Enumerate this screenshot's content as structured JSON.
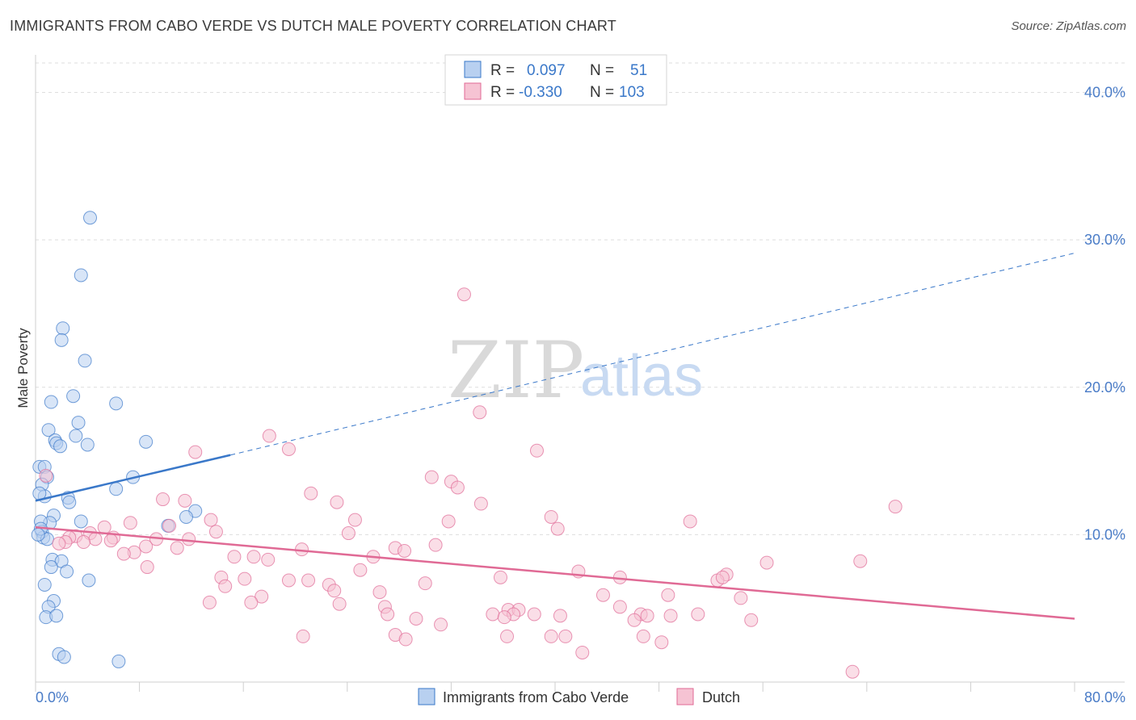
{
  "title": "IMMIGRANTS FROM CABO VERDE VS DUTCH MALE POVERTY CORRELATION CHART",
  "source": "Source: ZipAtlas.com",
  "watermark": {
    "zip": "ZIP",
    "atlas": "atlas"
  },
  "colors": {
    "blue": "#3a78c9",
    "blue_fill": "#b8d0f0",
    "pink": "#e06a95",
    "pink_fill": "#f6c3d3"
  },
  "legend": {
    "rows": [
      {
        "r_label": "R =",
        "r_value": "0.097",
        "n_label": "N =",
        "n_value": "51"
      },
      {
        "r_label": "R =",
        "r_value": "-0.330",
        "n_label": "N =",
        "n_value": "103"
      }
    ]
  },
  "chart_data": {
    "type": "scatter",
    "title": "IMMIGRANTS FROM CABO VERDE VS DUTCH MALE POVERTY CORRELATION CHART",
    "xlabel": "",
    "ylabel": "Male Poverty",
    "xlim": [
      0,
      80
    ],
    "ylim": [
      0,
      42
    ],
    "x_tick_labels": [
      "0.0%",
      "80.0%"
    ],
    "y_ticks": [
      10,
      20,
      30,
      40
    ],
    "y_tick_labels": [
      "10.0%",
      "20.0%",
      "30.0%",
      "40.0%"
    ],
    "series": [
      {
        "name": "Immigrants from Cabo Verde",
        "color": "#3a78c9",
        "trend": {
          "x0": 0,
          "y0": 12.3,
          "x1": 15,
          "y1": 15.4,
          "dash_to_x": 80,
          "dash_to_y": 29.1
        },
        "points": [
          [
            4.2,
            31.5
          ],
          [
            3.5,
            27.6
          ],
          [
            2.1,
            24.0
          ],
          [
            2.0,
            23.2
          ],
          [
            3.8,
            21.8
          ],
          [
            2.9,
            19.4
          ],
          [
            1.2,
            19.0
          ],
          [
            6.2,
            18.9
          ],
          [
            3.3,
            17.6
          ],
          [
            1.0,
            17.1
          ],
          [
            3.1,
            16.7
          ],
          [
            1.5,
            16.4
          ],
          [
            1.6,
            16.2
          ],
          [
            1.9,
            16.0
          ],
          [
            4.0,
            16.1
          ],
          [
            8.5,
            16.3
          ],
          [
            0.3,
            14.6
          ],
          [
            0.7,
            14.6
          ],
          [
            0.9,
            13.9
          ],
          [
            7.5,
            13.9
          ],
          [
            0.5,
            13.4
          ],
          [
            6.2,
            13.1
          ],
          [
            0.7,
            12.6
          ],
          [
            2.5,
            12.5
          ],
          [
            2.6,
            12.2
          ],
          [
            12.3,
            11.6
          ],
          [
            11.6,
            11.2
          ],
          [
            1.4,
            11.3
          ],
          [
            1.1,
            10.8
          ],
          [
            3.5,
            10.9
          ],
          [
            0.4,
            10.9
          ],
          [
            10.2,
            10.6
          ],
          [
            0.5,
            10.2
          ],
          [
            0.6,
            9.8
          ],
          [
            0.9,
            9.7
          ],
          [
            1.3,
            8.3
          ],
          [
            2.0,
            8.2
          ],
          [
            1.2,
            7.8
          ],
          [
            2.4,
            7.5
          ],
          [
            4.1,
            6.9
          ],
          [
            0.7,
            6.6
          ],
          [
            1.4,
            5.5
          ],
          [
            1.0,
            5.1
          ],
          [
            0.8,
            4.4
          ],
          [
            1.6,
            4.5
          ],
          [
            1.8,
            1.9
          ],
          [
            2.2,
            1.7
          ],
          [
            6.4,
            1.4
          ],
          [
            0.4,
            10.4
          ],
          [
            0.3,
            12.8
          ],
          [
            0.2,
            10.0
          ]
        ]
      },
      {
        "name": "Dutch",
        "color": "#e06a95",
        "trend": {
          "x0": 0,
          "y0": 10.5,
          "x1": 80,
          "y1": 4.3
        },
        "points": [
          [
            33.0,
            26.3
          ],
          [
            34.2,
            18.3
          ],
          [
            18.0,
            16.7
          ],
          [
            19.5,
            15.8
          ],
          [
            12.3,
            15.6
          ],
          [
            38.6,
            15.7
          ],
          [
            0.8,
            14.0
          ],
          [
            30.5,
            13.9
          ],
          [
            32.0,
            13.6
          ],
          [
            32.5,
            13.2
          ],
          [
            21.2,
            12.8
          ],
          [
            9.8,
            12.4
          ],
          [
            11.5,
            12.3
          ],
          [
            23.2,
            12.2
          ],
          [
            34.3,
            12.1
          ],
          [
            66.2,
            11.9
          ],
          [
            39.7,
            11.2
          ],
          [
            24.6,
            11.0
          ],
          [
            31.8,
            10.9
          ],
          [
            50.4,
            10.9
          ],
          [
            13.5,
            11.0
          ],
          [
            7.3,
            10.8
          ],
          [
            10.3,
            10.6
          ],
          [
            5.3,
            10.5
          ],
          [
            40.2,
            10.4
          ],
          [
            13.9,
            10.2
          ],
          [
            24.1,
            10.1
          ],
          [
            4.2,
            10.1
          ],
          [
            3.1,
            9.9
          ],
          [
            2.6,
            9.8
          ],
          [
            6.0,
            9.8
          ],
          [
            11.8,
            9.7
          ],
          [
            9.3,
            9.7
          ],
          [
            4.6,
            9.7
          ],
          [
            5.8,
            9.6
          ],
          [
            2.3,
            9.5
          ],
          [
            3.7,
            9.5
          ],
          [
            1.8,
            9.4
          ],
          [
            8.5,
            9.2
          ],
          [
            10.9,
            9.1
          ],
          [
            27.7,
            9.1
          ],
          [
            30.8,
            9.3
          ],
          [
            28.4,
            8.9
          ],
          [
            20.5,
            9.0
          ],
          [
            7.6,
            8.8
          ],
          [
            6.8,
            8.7
          ],
          [
            26.0,
            8.5
          ],
          [
            15.3,
            8.5
          ],
          [
            16.8,
            8.5
          ],
          [
            17.9,
            8.3
          ],
          [
            56.3,
            8.1
          ],
          [
            63.5,
            8.2
          ],
          [
            8.6,
            7.8
          ],
          [
            25.0,
            7.6
          ],
          [
            41.8,
            7.5
          ],
          [
            53.2,
            7.3
          ],
          [
            14.3,
            7.1
          ],
          [
            16.1,
            7.0
          ],
          [
            35.8,
            7.1
          ],
          [
            45.0,
            7.1
          ],
          [
            52.5,
            6.9
          ],
          [
            52.9,
            7.1
          ],
          [
            19.5,
            6.9
          ],
          [
            21.0,
            6.9
          ],
          [
            30.0,
            6.7
          ],
          [
            22.6,
            6.6
          ],
          [
            14.6,
            6.5
          ],
          [
            23.0,
            6.2
          ],
          [
            26.5,
            6.1
          ],
          [
            43.7,
            5.9
          ],
          [
            48.7,
            5.9
          ],
          [
            17.4,
            5.8
          ],
          [
            54.3,
            5.7
          ],
          [
            16.6,
            5.4
          ],
          [
            13.4,
            5.4
          ],
          [
            23.4,
            5.3
          ],
          [
            26.9,
            5.1
          ],
          [
            45.0,
            5.1
          ],
          [
            36.4,
            4.9
          ],
          [
            37.2,
            4.9
          ],
          [
            36.8,
            4.6
          ],
          [
            27.1,
            4.6
          ],
          [
            35.2,
            4.6
          ],
          [
            38.4,
            4.6
          ],
          [
            46.6,
            4.6
          ],
          [
            47.1,
            4.5
          ],
          [
            40.4,
            4.5
          ],
          [
            48.9,
            4.5
          ],
          [
            51.0,
            4.6
          ],
          [
            36.1,
            4.4
          ],
          [
            29.3,
            4.3
          ],
          [
            46.1,
            4.2
          ],
          [
            55.1,
            4.2
          ],
          [
            31.2,
            3.9
          ],
          [
            27.7,
            3.2
          ],
          [
            39.7,
            3.1
          ],
          [
            36.3,
            3.1
          ],
          [
            40.8,
            3.1
          ],
          [
            20.6,
            3.1
          ],
          [
            46.8,
            3.1
          ],
          [
            28.5,
            2.9
          ],
          [
            48.2,
            2.7
          ],
          [
            42.1,
            2.0
          ],
          [
            62.9,
            0.7
          ]
        ]
      }
    ]
  }
}
